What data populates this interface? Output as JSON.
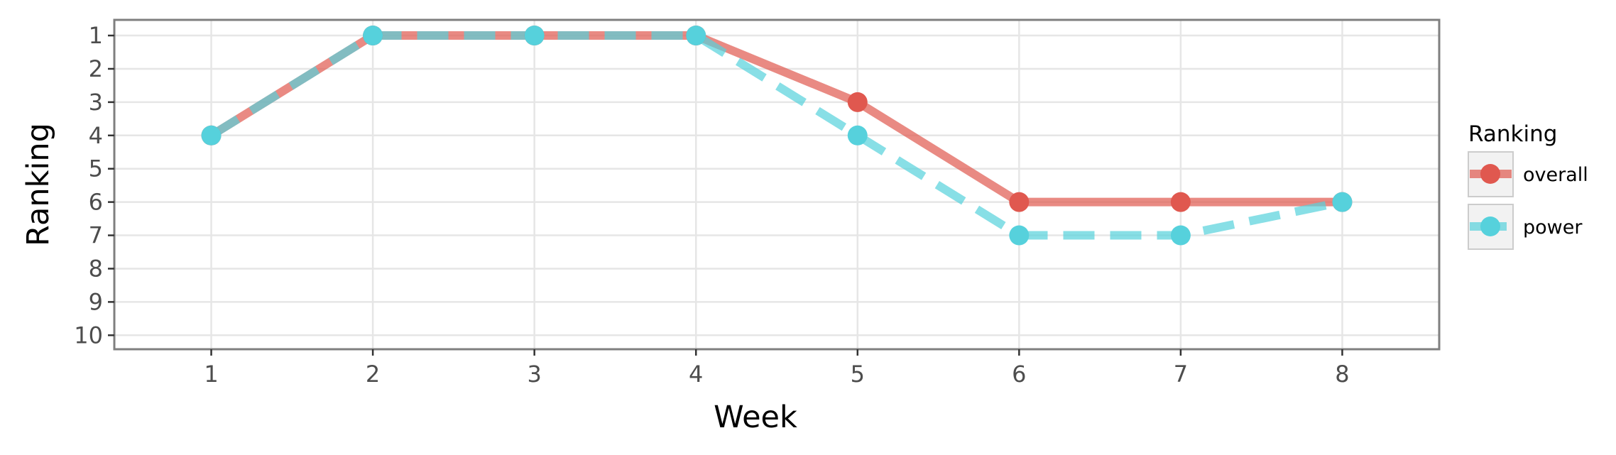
{
  "chart_data": {
    "type": "line",
    "xlabel": "Week",
    "ylabel": "Ranking",
    "x": [
      1,
      2,
      3,
      4,
      5,
      6,
      7,
      8
    ],
    "x_ticks": [
      "1",
      "2",
      "3",
      "4",
      "5",
      "6",
      "7",
      "8"
    ],
    "y_ticks": [
      "1",
      "2",
      "3",
      "4",
      "5",
      "6",
      "7",
      "8",
      "9",
      "10"
    ],
    "xlim": [
      0.4,
      8.6
    ],
    "ylim": [
      10.42,
      0.53
    ],
    "y_reversed": true,
    "grid": true,
    "legend": {
      "title": "Ranking",
      "placement": "right"
    },
    "series": [
      {
        "name": "overall",
        "values": [
          4,
          1,
          1,
          1,
          3,
          6,
          6,
          6
        ],
        "color": "#e0584f",
        "line_style": "solid"
      },
      {
        "name": "power",
        "values": [
          4,
          1,
          1,
          1,
          4,
          7,
          7,
          6
        ],
        "color": "#56d1dc",
        "line_style": "dashed"
      }
    ]
  }
}
